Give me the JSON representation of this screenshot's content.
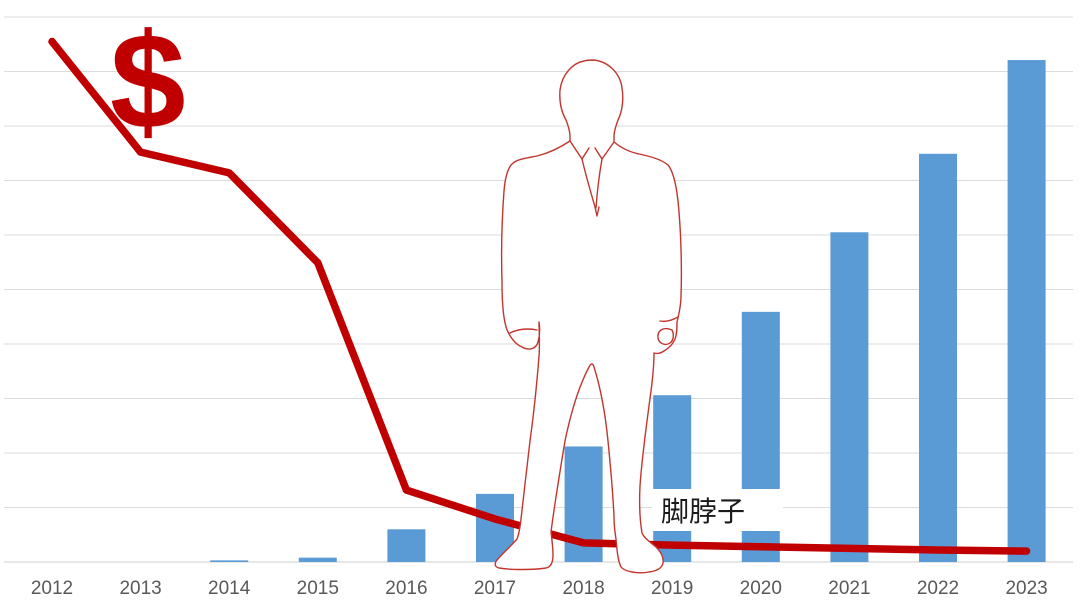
{
  "page": {
    "background": "#FFFFFF"
  },
  "chart_data": {
    "type": "combo-bar-line",
    "title": "",
    "xlabel": "",
    "ylabel": "",
    "legend": "none",
    "grid": true,
    "y_axis_tick_labels_visible": false,
    "ylim": [
      0,
      10
    ],
    "gridline_interval": 1,
    "categories": [
      "2012",
      "2013",
      "2014",
      "2015",
      "2016",
      "2017",
      "2018",
      "2019",
      "2020",
      "2021",
      "2022",
      "2023"
    ],
    "series": [
      {
        "name": "bar-series",
        "type": "bar",
        "color": "#5B9BD5",
        "values": [
          0,
          0,
          0.03,
          0.08,
          0.6,
          1.25,
          2.12,
          3.06,
          4.59,
          6.05,
          7.49,
          9.21
        ]
      },
      {
        "name": "line-series",
        "type": "line",
        "color": "#C00000",
        "values": [
          9.55,
          7.52,
          7.14,
          5.49,
          1.32,
          0.79,
          0.35,
          0.31,
          0.28,
          0.25,
          0.22,
          0.2
        ]
      }
    ],
    "annotations": {
      "dollar_sign": "$",
      "ankle_label": "脚脖子"
    }
  },
  "colors": {
    "bar_blue": "#5B9BD5",
    "line_red": "#C00000",
    "dollar_red": "#C00000",
    "figure_outline_red": "#C2352E",
    "gridline_gray": "#DBDBDB",
    "axis_gray": "#CFCFCF",
    "tick_label_gray": "#595959",
    "annotation_text_black": "#1A1A1A",
    "annotation_box_white": "#FFFFFF"
  }
}
